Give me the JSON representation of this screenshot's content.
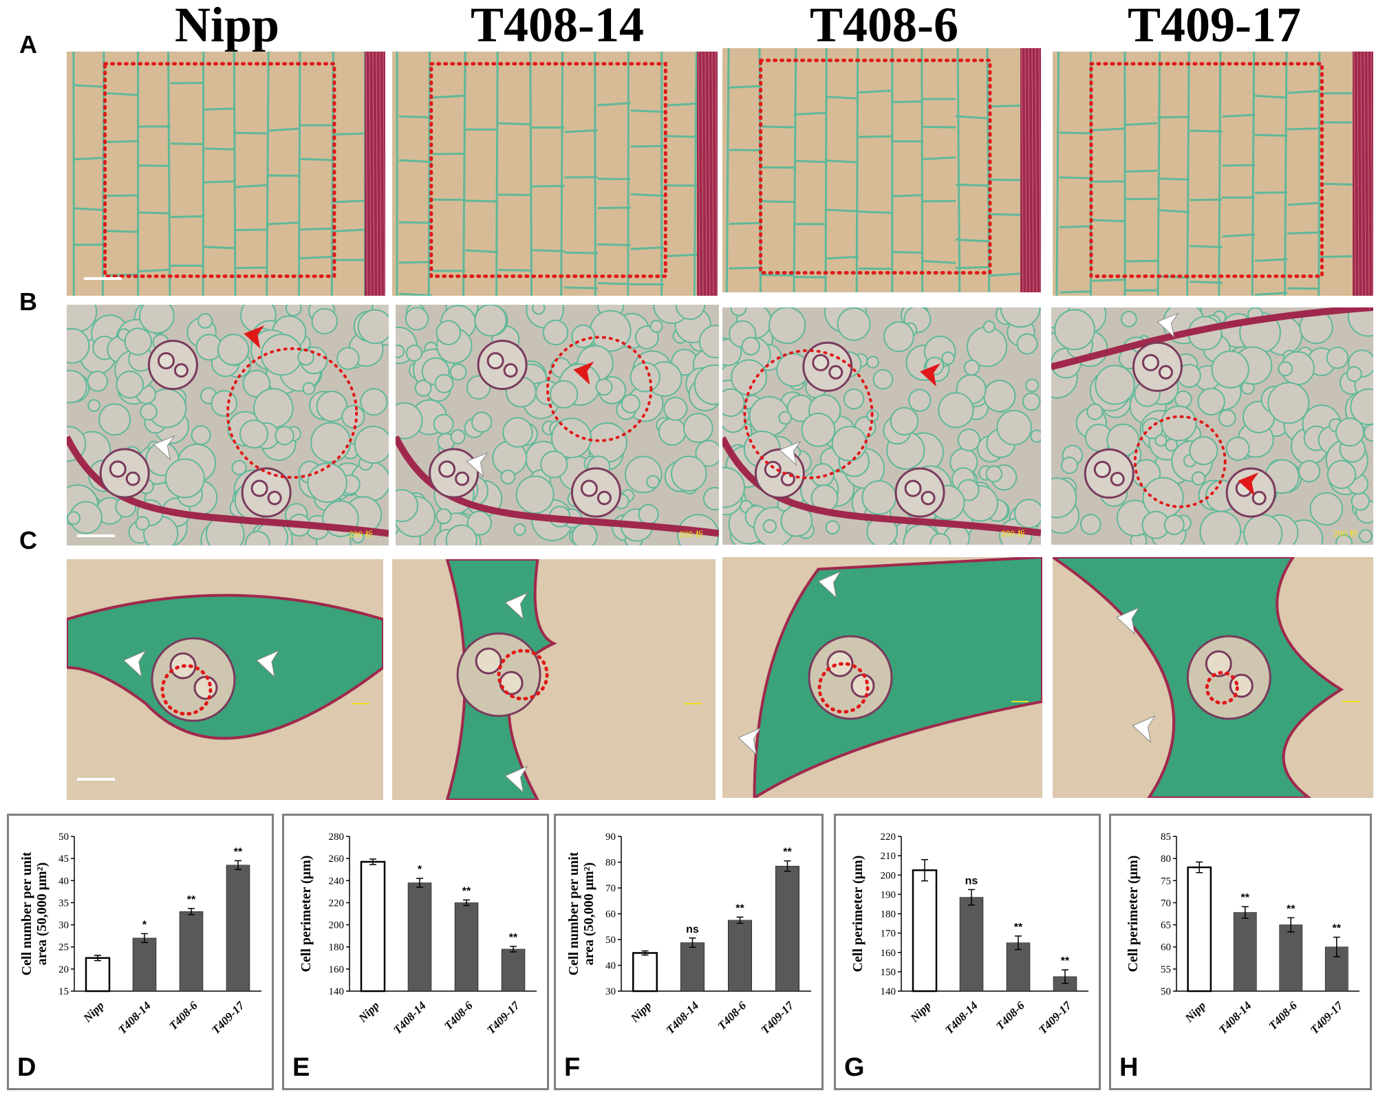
{
  "figure": {
    "columns": [
      "Nipp",
      "T408-14",
      "T408-6",
      "T409-17"
    ],
    "row_labels": [
      "A",
      "B",
      "C"
    ],
    "scale_text": "200 析",
    "colors": {
      "tissue_bg": "#dcc4a3",
      "cell_wall": "#5fb89a",
      "lignified": "#a0284c",
      "selection": "#e01818",
      "arrow_red": "#e01818",
      "arrow_white": "#ffffff",
      "bar_control": "#ffffff",
      "bar_mutant": "#595959",
      "chart_border": "#7f7f7f"
    }
  },
  "chart_data": [
    {
      "panel": "D",
      "type": "bar",
      "categories": [
        "Nipp",
        "T408-14",
        "T408-6",
        "T409-17"
      ],
      "values": [
        22.5,
        27,
        33,
        43.5
      ],
      "errors": [
        0.6,
        1.0,
        0.7,
        1.0
      ],
      "significance": [
        "",
        "*",
        "**",
        "**"
      ],
      "ylabel": "Cell number per unit area (50,000 μm²)",
      "ylim": [
        15,
        50
      ],
      "yticks": [
        15,
        20,
        25,
        30,
        35,
        40,
        45,
        50
      ]
    },
    {
      "panel": "E",
      "type": "bar",
      "categories": [
        "Nipp",
        "T408-14",
        "T408-6",
        "T409-17"
      ],
      "values": [
        257,
        238,
        220,
        178
      ],
      "errors": [
        2.5,
        4,
        2.5,
        2.5
      ],
      "significance": [
        "",
        "*",
        "**",
        "**"
      ],
      "ylabel": "Cell perimeter (μm)",
      "ylim": [
        140,
        280
      ],
      "yticks": [
        140,
        160,
        180,
        200,
        220,
        240,
        260,
        280
      ]
    },
    {
      "panel": "F",
      "type": "bar",
      "categories": [
        "Nipp",
        "T408-14",
        "T408-6",
        "T409-17"
      ],
      "values": [
        44.8,
        48.8,
        57.5,
        78.5
      ],
      "errors": [
        0.8,
        1.8,
        1.2,
        2.0
      ],
      "significance": [
        "",
        "ns",
        "**",
        "**"
      ],
      "ylabel": "Cell number per unit area (50,000 μm²)",
      "ylim": [
        30,
        90
      ],
      "yticks": [
        30,
        40,
        50,
        60,
        70,
        80,
        90
      ]
    },
    {
      "panel": "G",
      "type": "bar",
      "categories": [
        "Nipp",
        "T408-14",
        "T408-6",
        "T409-17"
      ],
      "values": [
        202.5,
        188.5,
        165,
        147.5
      ],
      "errors": [
        5.5,
        4,
        3.5,
        3.5
      ],
      "significance": [
        "",
        "ns",
        "**",
        "**"
      ],
      "ylabel": "Cell perimeter (μm)",
      "ylim": [
        140,
        220
      ],
      "yticks": [
        140,
        150,
        160,
        170,
        180,
        190,
        200,
        210,
        220
      ]
    },
    {
      "panel": "H",
      "type": "bar",
      "categories": [
        "Nipp",
        "T408-14",
        "T408-6",
        "T409-17"
      ],
      "values": [
        78,
        67.8,
        65,
        60
      ],
      "errors": [
        1.2,
        1.3,
        1.6,
        2.2
      ],
      "significance": [
        "",
        "**",
        "**",
        "**"
      ],
      "ylabel": "Cell perimeter (μm)",
      "ylim": [
        50,
        85
      ],
      "yticks": [
        50,
        55,
        60,
        65,
        70,
        75,
        80,
        85
      ]
    }
  ]
}
